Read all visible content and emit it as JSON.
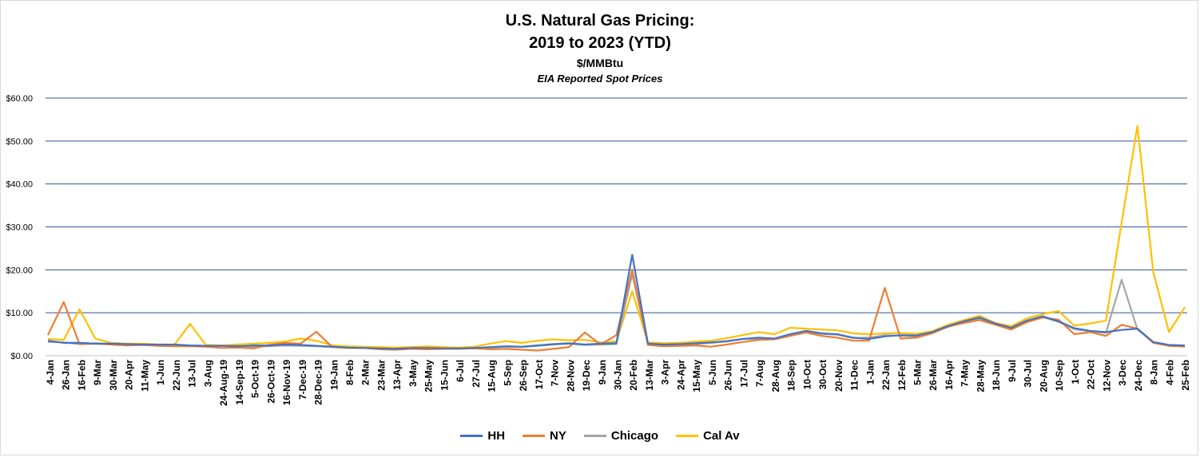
{
  "chart_data": {
    "type": "line",
    "title": "U.S. Natural Gas Pricing:",
    "title_line2": "2019 to 2023 (YTD)",
    "unit": "$/MMBtu",
    "subtitle": "EIA Reported Spot Prices",
    "ylim": [
      0,
      60
    ],
    "y_tick_labels": [
      "$0.00",
      "$10.00",
      "$20.00",
      "$30.00",
      "$40.00",
      "$50.00",
      "$60.00"
    ],
    "grid": true,
    "legend_position": "bottom",
    "x_labels": [
      "4-Jan",
      "26-Jan",
      "16-Feb",
      "9-Mar",
      "30-Mar",
      "20-Apr",
      "11-May",
      "1-Jun",
      "22-Jun",
      "13-Jul",
      "3-Aug",
      "24-Aug-19",
      "14-Sep-19",
      "5-Oct-19",
      "26-Oct-19",
      "16-Nov-19",
      "7-Dec-19",
      "28-Dec-19",
      "19-Jan",
      "8-Feb",
      "2-Mar",
      "23-Mar",
      "13-Apr",
      "3-May",
      "25-May",
      "15-Jun",
      "6-Jul",
      "27-Jul",
      "15-Aug",
      "5-Sep",
      "26-Sep",
      "17-Oct",
      "7-Nov",
      "28-Nov",
      "19-Dec",
      "9-Jan",
      "30-Jan",
      "20-Feb",
      "13-Mar",
      "3-Apr",
      "24-Apr",
      "15-May",
      "5-Jun",
      "26-Jun",
      "17-Jul",
      "7-Aug",
      "28-Aug",
      "18-Sep",
      "10-Oct",
      "30-Oct",
      "20-Nov",
      "11-Dec",
      "1-Jan",
      "22-Jan",
      "12-Feb",
      "5-Mar",
      "26-Mar",
      "16-Apr",
      "7-May",
      "28-May",
      "18-Jun",
      "9-Jul",
      "30-Jul",
      "20-Aug",
      "10-Sep",
      "1-Oct",
      "22-Oct",
      "12-Nov",
      "3-Dec",
      "24-Dec",
      "8-Jan",
      "4-Feb",
      "25-Feb"
    ],
    "series": [
      {
        "name": "HH",
        "color": "#4472C4",
        "values": [
          3.5,
          3.0,
          3.0,
          2.8,
          2.8,
          2.7,
          2.6,
          2.6,
          2.6,
          2.4,
          2.3,
          2.3,
          2.2,
          2.4,
          2.4,
          2.6,
          2.5,
          2.3,
          2.1,
          1.9,
          1.8,
          1.7,
          1.6,
          1.8,
          1.8,
          1.7,
          1.7,
          1.8,
          2.0,
          2.2,
          2.1,
          2.4,
          2.7,
          2.9,
          2.6,
          2.8,
          2.9,
          23.5,
          2.8,
          2.6,
          2.7,
          2.9,
          3.1,
          3.4,
          3.9,
          4.2,
          4.0,
          5.0,
          5.8,
          5.2,
          5.0,
          4.2,
          3.9,
          4.5,
          4.8,
          4.7,
          5.5,
          6.9,
          8.0,
          8.9,
          7.5,
          6.5,
          8.2,
          9.2,
          8.0,
          6.4,
          5.8,
          5.5,
          6.0,
          6.3,
          3.2,
          2.5,
          2.4
        ]
      },
      {
        "name": "NY",
        "color": "#ED7D31",
        "values": [
          4.8,
          12.5,
          2.7,
          2.8,
          2.6,
          2.4,
          2.5,
          2.3,
          2.2,
          2.2,
          2.1,
          1.8,
          1.9,
          1.7,
          2.5,
          3.0,
          2.8,
          5.6,
          2.0,
          1.8,
          1.8,
          1.5,
          1.4,
          1.6,
          1.5,
          1.6,
          1.6,
          1.7,
          1.5,
          1.6,
          1.4,
          1.2,
          1.6,
          2.0,
          5.4,
          2.6,
          4.8,
          20.0,
          2.5,
          2.2,
          2.3,
          2.4,
          2.1,
          2.6,
          3.2,
          3.7,
          3.8,
          4.6,
          5.4,
          4.6,
          4.2,
          3.5,
          3.5,
          15.8,
          4.0,
          4.2,
          5.2,
          6.8,
          7.6,
          8.3,
          7.2,
          6.1,
          7.8,
          8.9,
          8.4,
          5.0,
          5.5,
          4.6,
          7.2,
          6.3,
          3.0,
          2.3,
          2.1
        ]
      },
      {
        "name": "Chicago",
        "color": "#A5A5A5",
        "values": [
          3.2,
          3.1,
          2.7,
          2.9,
          2.7,
          2.6,
          2.5,
          2.4,
          2.3,
          2.3,
          2.2,
          2.3,
          2.3,
          2.1,
          2.2,
          2.4,
          2.3,
          2.2,
          2.0,
          1.8,
          1.8,
          1.6,
          1.5,
          1.7,
          1.6,
          1.6,
          1.6,
          1.8,
          1.9,
          2.1,
          2.0,
          2.3,
          2.6,
          2.8,
          2.5,
          2.6,
          2.7,
          19.0,
          2.7,
          2.5,
          2.6,
          2.7,
          3.0,
          3.3,
          3.9,
          4.0,
          3.9,
          4.9,
          5.6,
          5.1,
          4.9,
          4.1,
          4.2,
          4.8,
          4.6,
          4.5,
          5.3,
          6.7,
          7.8,
          8.6,
          7.3,
          6.3,
          8.0,
          9.0,
          7.9,
          6.2,
          5.7,
          5.3,
          17.7,
          6.1,
          3.1,
          2.4,
          2.3
        ]
      },
      {
        "name": "Cal Av",
        "color": "#FFC000",
        "values": [
          3.9,
          3.7,
          10.8,
          4.0,
          3.0,
          2.8,
          2.8,
          2.6,
          2.5,
          7.4,
          2.5,
          2.4,
          2.6,
          2.8,
          3.0,
          3.3,
          4.0,
          3.5,
          2.4,
          2.2,
          2.1,
          2.0,
          1.9,
          2.0,
          2.2,
          2.0,
          1.9,
          2.1,
          2.8,
          3.4,
          3.0,
          3.5,
          3.8,
          3.6,
          3.7,
          3.1,
          3.3,
          15.0,
          3.1,
          2.9,
          3.0,
          3.3,
          3.5,
          4.1,
          4.8,
          5.5,
          5.0,
          6.5,
          6.3,
          6.1,
          5.9,
          5.2,
          5.0,
          5.2,
          5.3,
          5.1,
          5.7,
          7.2,
          8.3,
          9.3,
          7.6,
          6.9,
          8.7,
          9.7,
          10.4,
          7.0,
          7.5,
          8.2,
          31.0,
          53.5,
          19.5,
          5.5,
          11.3
        ]
      }
    ]
  }
}
